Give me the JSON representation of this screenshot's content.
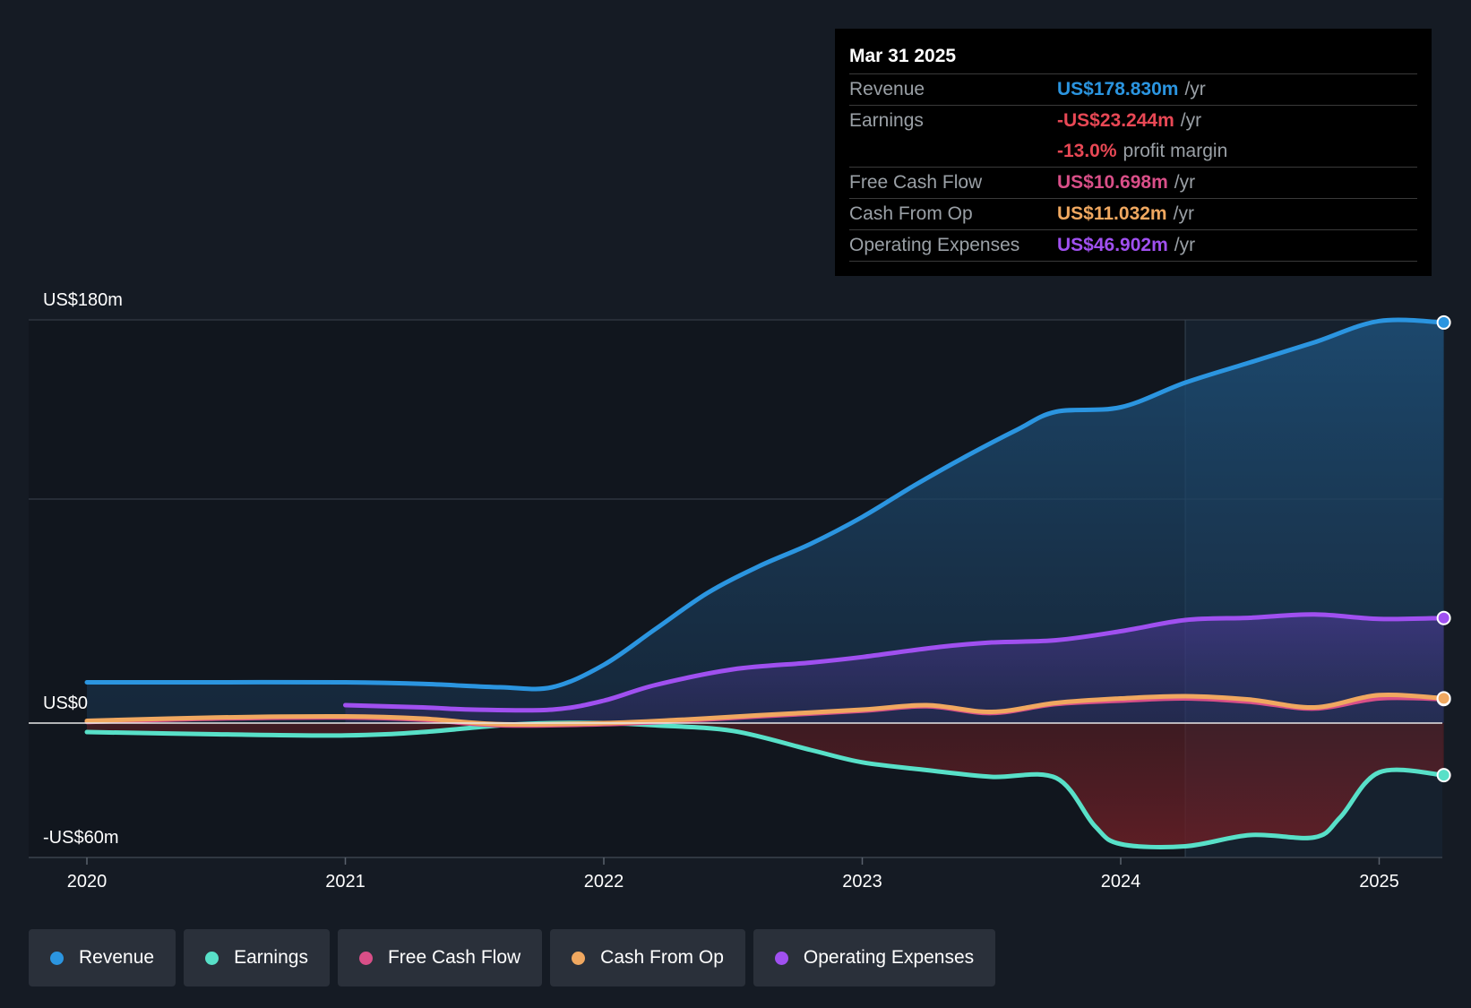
{
  "chart_data": {
    "type": "line",
    "y_axis": {
      "top_label": "US$180m",
      "zero_label": "US$0",
      "bottom_label": "-US$60m",
      "ylim": [
        -60,
        180
      ],
      "gridlines": [
        180,
        100
      ]
    },
    "x_axis": {
      "ticks": [
        "2020",
        "2021",
        "2022",
        "2023",
        "2024",
        "2025"
      ],
      "xlim": [
        2019.78,
        2025.25
      ]
    },
    "highlight_start": 2024.25,
    "series": [
      {
        "name": "Revenue",
        "color": "#2b95e0",
        "fill": "positive",
        "x": [
          2020.0,
          2020.5,
          2021.0,
          2021.3,
          2021.6,
          2021.8,
          2022.0,
          2022.2,
          2022.4,
          2022.6,
          2022.8,
          2023.0,
          2023.2,
          2023.4,
          2023.6,
          2023.75,
          2024.0,
          2024.25,
          2024.5,
          2024.75,
          2025.0,
          2025.25
        ],
        "y": [
          18.2,
          18.2,
          18.2,
          17.5,
          16.0,
          16.0,
          26.0,
          42.0,
          58.0,
          70.0,
          80.0,
          92.0,
          106.0,
          119.0,
          131.0,
          139.0,
          141.0,
          152.0,
          161.0,
          170.0,
          179.5,
          178.83
        ]
      },
      {
        "name": "Earnings",
        "color": "#58e0c8",
        "fill": "negative",
        "x": [
          2020.0,
          2020.5,
          2021.0,
          2021.3,
          2021.6,
          2021.8,
          2022.0,
          2022.2,
          2022.5,
          2022.8,
          2023.0,
          2023.25,
          2023.5,
          2023.75,
          2023.9,
          2024.0,
          2024.25,
          2024.5,
          2024.75,
          2024.85,
          2025.0,
          2025.25
        ],
        "y": [
          -4.0,
          -5.0,
          -5.5,
          -4.0,
          -1.0,
          0.0,
          0.0,
          -1.0,
          -3.5,
          -12.0,
          -17.5,
          -21.0,
          -24.0,
          -24.5,
          -46.0,
          -54.0,
          -55.0,
          -50.0,
          -51.0,
          -42.0,
          -22.0,
          -23.244
        ]
      },
      {
        "name": "Free Cash Flow",
        "color": "#d94f88",
        "fill": "none",
        "x": [
          2020.0,
          2020.5,
          2021.0,
          2021.3,
          2021.6,
          2022.0,
          2022.3,
          2022.6,
          2023.0,
          2023.25,
          2023.5,
          2023.75,
          2024.0,
          2024.25,
          2024.5,
          2024.75,
          2025.0,
          2025.25
        ],
        "y": [
          0.5,
          2.0,
          2.5,
          1.5,
          -1.0,
          -0.5,
          1.0,
          3.0,
          5.5,
          7.5,
          4.5,
          8.5,
          10.0,
          11.0,
          9.5,
          6.5,
          11.0,
          10.698
        ]
      },
      {
        "name": "Cash From Op",
        "color": "#f0a860",
        "fill": "none",
        "x": [
          2020.0,
          2020.5,
          2021.0,
          2021.3,
          2021.6,
          2022.0,
          2022.3,
          2022.6,
          2023.0,
          2023.25,
          2023.5,
          2023.75,
          2024.0,
          2024.25,
          2024.5,
          2024.75,
          2025.0,
          2025.25
        ],
        "y": [
          1.0,
          2.5,
          3.0,
          2.0,
          -0.5,
          0.0,
          1.5,
          3.5,
          6.0,
          8.0,
          5.0,
          9.0,
          11.0,
          12.0,
          10.5,
          7.0,
          12.5,
          11.032
        ]
      },
      {
        "name": "Operating Expenses",
        "color": "#a050f0",
        "fill": "positive",
        "x": [
          2021.0,
          2021.3,
          2021.5,
          2021.8,
          2022.0,
          2022.2,
          2022.5,
          2022.8,
          2023.0,
          2023.3,
          2023.5,
          2023.75,
          2024.0,
          2024.25,
          2024.5,
          2024.75,
          2025.0,
          2025.25
        ],
        "y": [
          8.0,
          7.0,
          6.0,
          6.0,
          10.0,
          17.0,
          24.0,
          27.0,
          29.5,
          34.0,
          36.0,
          37.0,
          41.0,
          46.0,
          47.0,
          48.5,
          46.5,
          46.902
        ]
      }
    ]
  },
  "tooltip": {
    "date": "Mar 31 2025",
    "rows": [
      {
        "label": "Revenue",
        "value": "US$178.830m",
        "unit": "/yr",
        "color": "#2b95e0"
      },
      {
        "label": "Earnings",
        "value": "-US$23.244m",
        "unit": "/yr",
        "color": "#e84855"
      },
      {
        "label": "",
        "value": "-13.0%",
        "unit": "profit margin",
        "color": "#e84855"
      },
      {
        "label": "Free Cash Flow",
        "value": "US$10.698m",
        "unit": "/yr",
        "color": "#d94f88"
      },
      {
        "label": "Cash From Op",
        "value": "US$11.032m",
        "unit": "/yr",
        "color": "#f0a860"
      },
      {
        "label": "Operating Expenses",
        "value": "US$46.902m",
        "unit": "/yr",
        "color": "#a050f0"
      }
    ]
  },
  "legend": [
    {
      "label": "Revenue",
      "color": "#2b95e0"
    },
    {
      "label": "Earnings",
      "color": "#58e0c8"
    },
    {
      "label": "Free Cash Flow",
      "color": "#d94f88"
    },
    {
      "label": "Cash From Op",
      "color": "#f0a860"
    },
    {
      "label": "Operating Expenses",
      "color": "#a050f0"
    }
  ]
}
